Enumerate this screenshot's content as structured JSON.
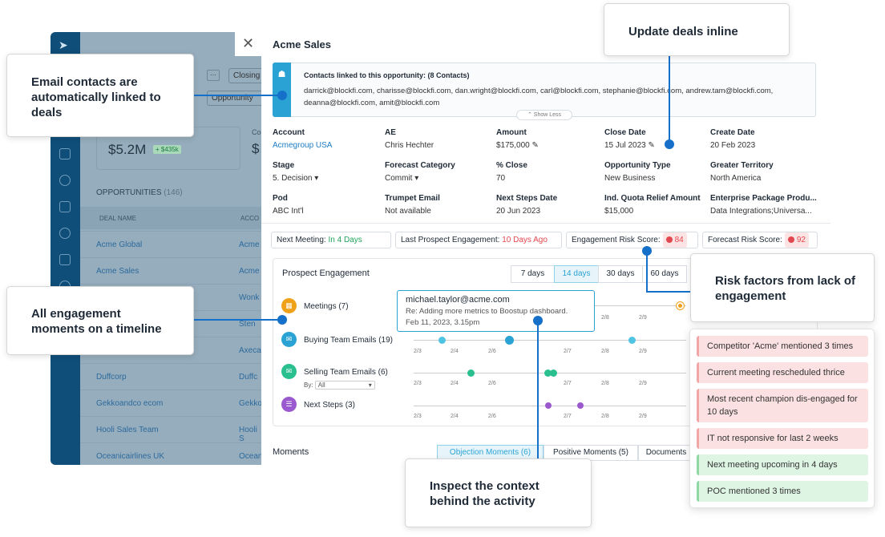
{
  "background_app": {
    "metric_value": "$5.2M",
    "metric_delta": "+ $435k",
    "metric_value_2": "$",
    "closing_label": "Closing",
    "more_label": "···",
    "opportunity_chip": "Opportunity",
    "metric_label_2": "Co",
    "opportunities_header": "OPPORTUNITIES",
    "opportunities_count": "(146)",
    "col_deal_name": "DEAL NAME",
    "col_account": "ACCO",
    "rows": [
      {
        "deal": "Acme Global",
        "acct": "Acme"
      },
      {
        "deal": "Acme Sales",
        "acct": "Acme"
      },
      {
        "deal": "",
        "acct": "Wonk"
      },
      {
        "deal": "",
        "acct": "Sten"
      },
      {
        "deal": "",
        "acct": "Axeca"
      },
      {
        "deal": "Duffcorp",
        "acct": "Duffc"
      },
      {
        "deal": "Gekkoandco ecom",
        "acct": "Gekko"
      },
      {
        "deal": "Hooli Sales Team",
        "acct": "Hooli S"
      },
      {
        "deal": "Oceanicairlines UK",
        "acct": "Ocean"
      }
    ]
  },
  "modal": {
    "title": "Acme Sales",
    "close_icon": "close-icon",
    "contacts_title": "Contacts linked to this opportunity: (8 Contacts)",
    "contacts_line1": "darrick@blockfi.com, charisse@blockfi.com, dan.wright@blockfi.com, carl@blockfi.com, stephanie@blockfi.com, andrew.tam@blockfi.com,",
    "contacts_line2": "deanna@blockfi.com, amit@blockfi.com",
    "show_less": "Show Less",
    "fields": [
      {
        "label": "Account",
        "value": "Acmegroup USA"
      },
      {
        "label": "AE",
        "value": "Chris Hechter"
      },
      {
        "label": "Amount",
        "value": "$175,000"
      },
      {
        "label": "Close Date",
        "value": "15 Jul 2023"
      },
      {
        "label": "Create Date",
        "value": "20 Feb 2023"
      },
      {
        "label": "Stage",
        "value": "5. Decision"
      },
      {
        "label": "Forecast Category",
        "value": "Commit"
      },
      {
        "label": "% Close",
        "value": "70"
      },
      {
        "label": "Opportunity Type",
        "value": "New Business"
      },
      {
        "label": "Greater Territory",
        "value": "North America"
      },
      {
        "label": "Pod",
        "value": "ABC Int'l"
      },
      {
        "label": "Trumpet Email",
        "value": "Not available"
      },
      {
        "label": "Next Steps Date",
        "value": "20 Jun 2023"
      },
      {
        "label": "Ind. Quota Relief Amount",
        "value": "$15,000"
      },
      {
        "label": "Enterprise Package Produ...",
        "value": "Data Integrations;Universa..."
      }
    ],
    "status": {
      "next_meeting_label": "Next Meeting:",
      "next_meeting_value": "In 4 Days",
      "last_engagement_label": "Last Prospect Engagement:",
      "last_engagement_value": "10 Days Ago",
      "engagement_risk_label": "Engagement Risk Score:",
      "engagement_risk_value": "84",
      "forecast_risk_label": "Forecast Risk Score:",
      "forecast_risk_value": "92"
    },
    "engagement": {
      "title": "Prospect Engagement",
      "ranges": [
        "7 days",
        "14 days",
        "30 days",
        "60 days"
      ],
      "active_range": "14 days",
      "rows": [
        {
          "label": "Meetings (7)",
          "icon": "calendar-icon",
          "color": "#f0a11a"
        },
        {
          "label": "Buying Team Emails (19)",
          "icon": "email-icon",
          "color": "#2aa3d4"
        },
        {
          "label": "Selling Team Emails (6)",
          "icon": "email-icon",
          "color": "#2abf8e"
        },
        {
          "label": "Next Steps (3)",
          "icon": "list-icon",
          "color": "#9b59d0"
        }
      ],
      "by_label": "By:",
      "by_value": "All",
      "tick_labels": [
        "2/3",
        "2/4",
        "2/6",
        "2/7",
        "2/8",
        "2/9"
      ],
      "tooltip": {
        "email": "michael.taylor@acme.com",
        "subject": "Re: Adding more metrics to Boostup dashboard.",
        "date": "Feb 11, 2023,  3.15pm"
      }
    },
    "moments": {
      "title": "Moments",
      "tabs": [
        "Objection Moments (6)",
        "Positive Moments (5)",
        "Documents"
      ]
    }
  },
  "callouts": {
    "email_contacts": "Email contacts are automatically linked to deals",
    "update_deals": "Update deals inline",
    "risk_factors": "Risk factors from lack of engagement",
    "engagement_timeline": "All engagement moments on a timeline",
    "inspect_context": "Inspect the context behind the activity"
  },
  "risk_factors": [
    {
      "text": "Competitor 'Acme' mentioned 3 times",
      "tone": "negative"
    },
    {
      "text": "Current meeting rescheduled thrice",
      "tone": "negative"
    },
    {
      "text": "Most recent champion dis-engaged for 10 days",
      "tone": "negative"
    },
    {
      "text": "IT not responsive for last 2 weeks",
      "tone": "negative"
    },
    {
      "text": "Next meeting upcoming in 4 days",
      "tone": "positive"
    },
    {
      "text": "POC mentioned 3 times",
      "tone": "positive"
    }
  ],
  "colors": {
    "accent": "#2aa3d4",
    "callout_line": "#1570c9",
    "nav": "#0f4e79",
    "danger": "#e2474f",
    "success": "#22a35a"
  }
}
